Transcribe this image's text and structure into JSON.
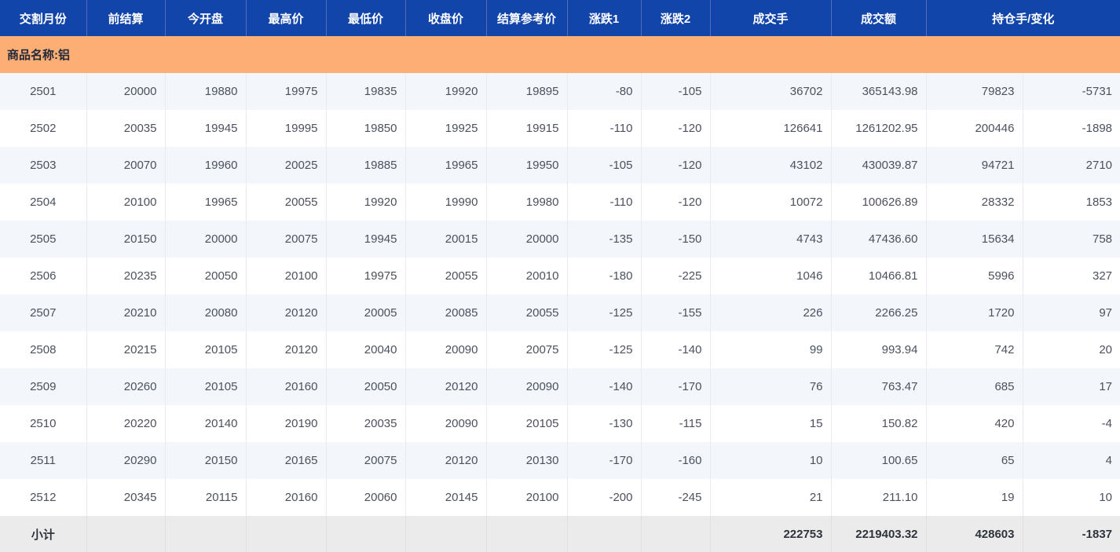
{
  "table": {
    "columns": [
      {
        "label": "交割月份",
        "span": 1
      },
      {
        "label": "前结算",
        "span": 1
      },
      {
        "label": "今开盘",
        "span": 1
      },
      {
        "label": "最高价",
        "span": 1
      },
      {
        "label": "最低价",
        "span": 1
      },
      {
        "label": "收盘价",
        "span": 1
      },
      {
        "label": "结算参考价",
        "span": 1
      },
      {
        "label": "涨跌1",
        "span": 1
      },
      {
        "label": "涨跌2",
        "span": 1
      },
      {
        "label": "成交手",
        "span": 1
      },
      {
        "label": "成交额",
        "span": 1
      },
      {
        "label": "持仓手/变化",
        "span": 2
      }
    ],
    "group_label": "商品名称:铝",
    "rows": [
      [
        "2501",
        "20000",
        "19880",
        "19975",
        "19835",
        "19920",
        "19895",
        "-80",
        "-105",
        "36702",
        "365143.98",
        "79823",
        "-5731"
      ],
      [
        "2502",
        "20035",
        "19945",
        "19995",
        "19850",
        "19925",
        "19915",
        "-110",
        "-120",
        "126641",
        "1261202.95",
        "200446",
        "-1898"
      ],
      [
        "2503",
        "20070",
        "19960",
        "20025",
        "19885",
        "19965",
        "19950",
        "-105",
        "-120",
        "43102",
        "430039.87",
        "94721",
        "2710"
      ],
      [
        "2504",
        "20100",
        "19965",
        "20055",
        "19920",
        "19990",
        "19980",
        "-110",
        "-120",
        "10072",
        "100626.89",
        "28332",
        "1853"
      ],
      [
        "2505",
        "20150",
        "20000",
        "20075",
        "19945",
        "20015",
        "20000",
        "-135",
        "-150",
        "4743",
        "47436.60",
        "15634",
        "758"
      ],
      [
        "2506",
        "20235",
        "20050",
        "20100",
        "19975",
        "20055",
        "20010",
        "-180",
        "-225",
        "1046",
        "10466.81",
        "5996",
        "327"
      ],
      [
        "2507",
        "20210",
        "20080",
        "20120",
        "20005",
        "20085",
        "20055",
        "-125",
        "-155",
        "226",
        "2266.25",
        "1720",
        "97"
      ],
      [
        "2508",
        "20215",
        "20105",
        "20120",
        "20040",
        "20090",
        "20075",
        "-125",
        "-140",
        "99",
        "993.94",
        "742",
        "20"
      ],
      [
        "2509",
        "20260",
        "20105",
        "20160",
        "20050",
        "20120",
        "20090",
        "-140",
        "-170",
        "76",
        "763.47",
        "685",
        "17"
      ],
      [
        "2510",
        "20220",
        "20140",
        "20190",
        "20035",
        "20090",
        "20105",
        "-130",
        "-115",
        "15",
        "150.82",
        "420",
        "-4"
      ],
      [
        "2511",
        "20290",
        "20150",
        "20165",
        "20075",
        "20120",
        "20130",
        "-170",
        "-160",
        "10",
        "100.65",
        "65",
        "4"
      ],
      [
        "2512",
        "20345",
        "20115",
        "20160",
        "20060",
        "20145",
        "20100",
        "-200",
        "-245",
        "21",
        "211.10",
        "19",
        "10"
      ]
    ],
    "subtotal": {
      "label": "小计",
      "values": [
        "",
        "",
        "",
        "",
        "",
        "",
        "",
        "",
        "222753",
        "2219403.32",
        "428603",
        "-1837"
      ]
    }
  },
  "colors": {
    "header_bg": "#1245aa",
    "header_text": "#ffffff",
    "group_bg": "#fcae74",
    "row_alt_bg": "#f3f6fa",
    "subtotal_bg": "#ebebeb",
    "data_text": "#4b515e"
  }
}
